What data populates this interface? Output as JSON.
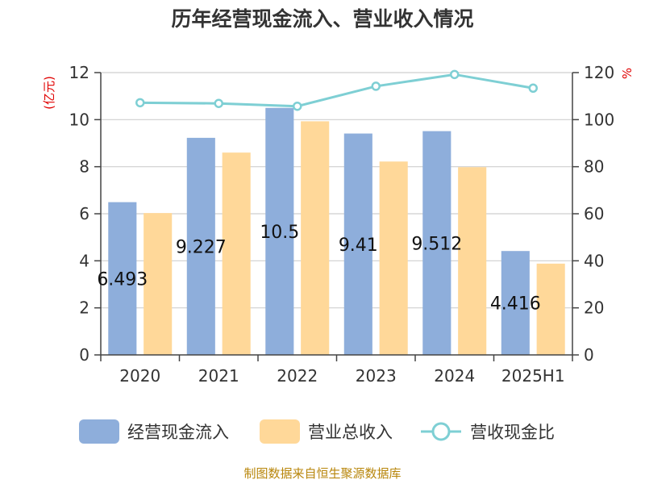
{
  "chart_data": {
    "type": "bar",
    "title": "历年经营现金流入、营业收入情况",
    "categories": [
      "2020",
      "2021",
      "2022",
      "2023",
      "2024",
      "2025H1"
    ],
    "left_axis_unit": "(亿元)",
    "right_axis_unit": "%",
    "ylim_left": [
      0,
      12
    ],
    "ylim_right": [
      0,
      120
    ],
    "y_ticks_left": [
      "0",
      "2",
      "4",
      "6",
      "8",
      "10",
      "12"
    ],
    "y_ticks_right": [
      "0",
      "20",
      "40",
      "60",
      "80",
      "100",
      "120"
    ],
    "grid": true,
    "legend_position": "bottom",
    "series": [
      {
        "name": "经营现金流入",
        "type": "bar",
        "axis": "left",
        "color": "#8eaedb",
        "values": [
          6.493,
          9.227,
          10.5,
          9.41,
          9.512,
          4.416
        ],
        "labels": [
          "6.493",
          "9.227",
          "10.5",
          "9.41",
          "9.512",
          "4.416"
        ]
      },
      {
        "name": "营业总收入",
        "type": "bar",
        "axis": "left",
        "color": "#ffd899",
        "values": [
          6.03,
          8.6,
          9.93,
          8.22,
          7.98,
          3.88
        ]
      },
      {
        "name": "营收现金比",
        "type": "line",
        "axis": "right",
        "color": "#7ecfd4",
        "values": [
          107.2,
          106.9,
          105.7,
          114.2,
          119.2,
          113.4
        ]
      }
    ],
    "source_text": "制图数据来自恒生聚源数据库"
  }
}
